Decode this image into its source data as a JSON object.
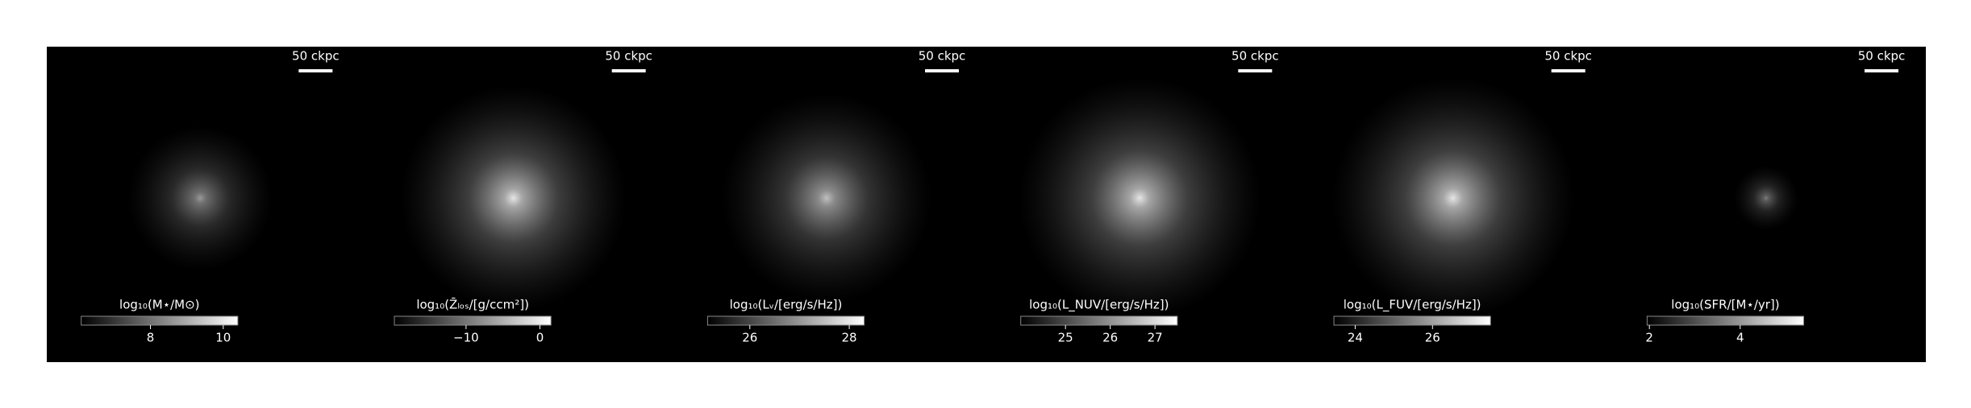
{
  "chart_data": [
    {
      "type": "image",
      "scale_label": "50 ckpc",
      "colorbar_label": "log₁₀(M⋆/M⊙)",
      "clim": [
        6.1,
        10.4
      ],
      "cticks": [
        8,
        10
      ]
    },
    {
      "type": "image",
      "scale_label": "50 ckpc",
      "colorbar_label": "log₁₀(Z̄ₗₒₛ/[g/ccm²])",
      "clim": [
        -19.7,
        1.5
      ],
      "cticks": [
        {
          "value": -10,
          "label": "−10"
        },
        0
      ]
    },
    {
      "type": "image",
      "scale_label": "50 ckpc",
      "colorbar_label": "log₁₀(Lᵥ/[erg/s/Hz])",
      "clim": [
        25.15,
        28.3
      ],
      "cticks": [
        26,
        28
      ]
    },
    {
      "type": "image",
      "scale_label": "50 ckpc",
      "colorbar_label": "log₁₀(L_NUV/[erg/s/Hz])",
      "clim": [
        24.0,
        27.5
      ],
      "cticks": [
        25,
        26,
        27
      ]
    },
    {
      "type": "image",
      "scale_label": "50 ckpc",
      "colorbar_label": "log₁₀(L_FUV/[erg/s/Hz])",
      "clim": [
        23.45,
        27.5
      ],
      "cticks": [
        24,
        26
      ]
    },
    {
      "type": "image",
      "scale_label": "50 ckpc",
      "colorbar_label": "log₁₀(SFR/[M⋆/yr])",
      "clim": [
        1.95,
        5.4
      ],
      "cticks": [
        2,
        4
      ]
    }
  ]
}
